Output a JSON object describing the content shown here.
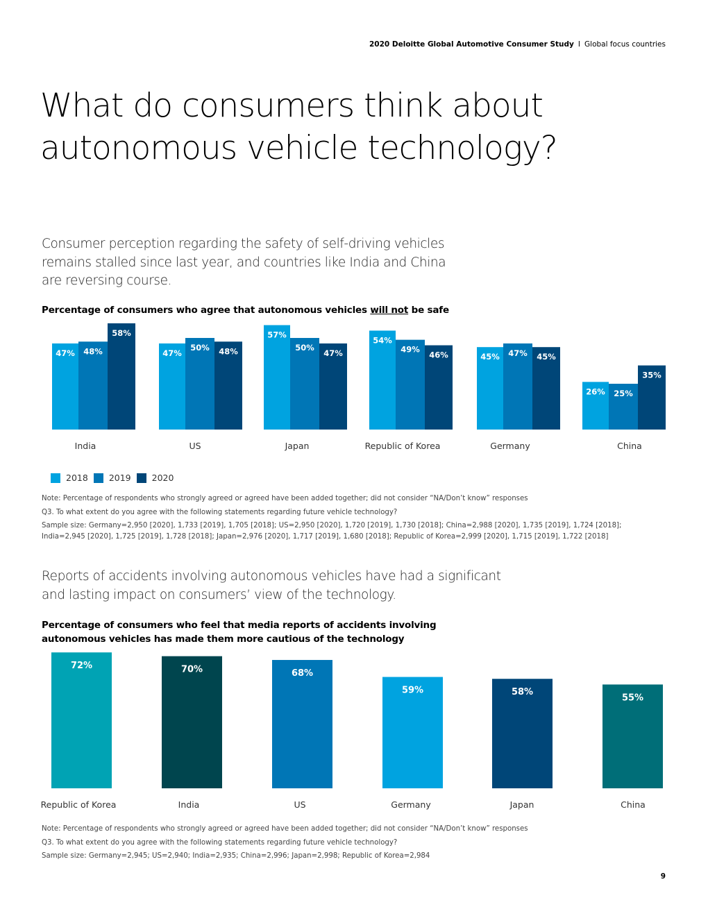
{
  "header": {
    "report_title": "2020 Deloitte Global Automotive Consumer Study",
    "separator": "I",
    "section": "Global focus countries"
  },
  "page_title": "What do consumers think about autonomous vehicle technology?",
  "section1": {
    "intro": "Consumer perception regarding the safety of self-driving vehicles remains stalled since last year, and countries like India and China are reversing course.",
    "chart_title_before": "Percentage of consumers who agree that autonomous vehicles ",
    "chart_title_emph": "will not",
    "chart_title_after": " be safe",
    "notes": {
      "note": "Note: Percentage of respondents who strongly agreed or agreed have been added together; did not consider “NA/Don’t know” responses",
      "question": "Q3. To what extent do you agree with the following statements regarding future vehicle technology?",
      "sample": "Sample size: Germany=2,950 [2020], 1,733 [2019], 1,705 [2018]; US=2,950 [2020], 1,720 [2019], 1,730 [2018]; China=2,988 [2020], 1,735 [2019], 1,724 [2018]; India=2,945 [2020], 1,725 [2019], 1,728 [2018]; Japan=2,976 [2020], 1,717 [2019], 1,680 [2018]; Republic of Korea=2,999 [2020], 1,715 [2019], 1,722 [2018]"
    }
  },
  "section2": {
    "intro": "Reports of accidents involving autonomous vehicles have had a significant and lasting impact on consumers’ view of the technology.",
    "chart_title": "Percentage of consumers who feel that media reports of accidents involving autonomous vehicles has made them more cautious of the technology",
    "notes": {
      "note": "Note: Percentage of respondents who strongly agreed or agreed have been added together; did not consider “NA/Don’t know” responses",
      "question": "Q3. To what extent do you agree with the following statements regarding future vehicle technology?",
      "sample": "Sample size: Germany=2,945; US=2,940; India=2,935; China=2,996; Japan=2,998; Republic of Korea=2,984"
    }
  },
  "page_number": "9",
  "chart_data": [
    {
      "type": "bar",
      "title": "Percentage of consumers who agree that autonomous vehicles will not be safe",
      "xlabel": "",
      "ylabel": "",
      "ylim": [
        0,
        60
      ],
      "grid": false,
      "legend": "bottom-left",
      "categories": [
        "India",
        "US",
        "Japan",
        "Republic of Korea",
        "Germany",
        "China"
      ],
      "series": [
        {
          "name": "2018",
          "color": "#00A3E0",
          "values": [
            47,
            47,
            57,
            54,
            45,
            26
          ]
        },
        {
          "name": "2019",
          "color": "#0076B6",
          "values": [
            48,
            50,
            50,
            49,
            47,
            25
          ]
        },
        {
          "name": "2020",
          "color": "#004678",
          "values": [
            58,
            48,
            47,
            46,
            45,
            35
          ]
        }
      ],
      "value_suffix": "%"
    },
    {
      "type": "bar",
      "title": "Percentage of consumers who feel that media reports of accidents involving autonomous vehicles has made them more cautious of the technology",
      "xlabel": "",
      "ylabel": "",
      "ylim": [
        0,
        75
      ],
      "grid": false,
      "categories": [
        "Republic of Korea",
        "India",
        "US",
        "Germany",
        "Japan",
        "China"
      ],
      "values": [
        72,
        70,
        68,
        59,
        58,
        55
      ],
      "colors": [
        "#00A3B4",
        "#00454E",
        "#0076B6",
        "#00A3E0",
        "#004678",
        "#006E78"
      ],
      "value_suffix": "%"
    }
  ]
}
